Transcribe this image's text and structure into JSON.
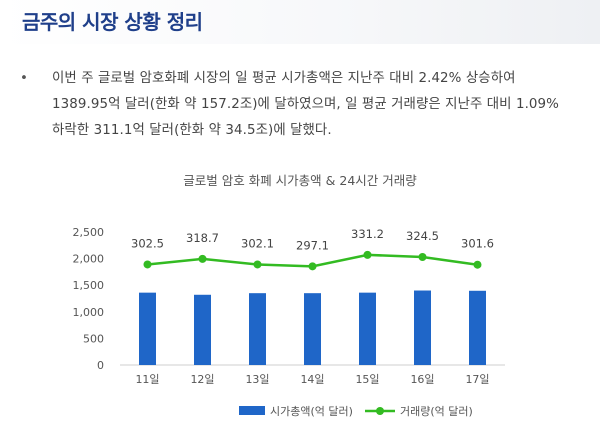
{
  "header": {
    "title": "금주의 시장 상황 정리"
  },
  "summary": {
    "bullet": "•",
    "lines": [
      "이번 주 글로벌 암호화폐 시장의 일 평균 시가총액은 지난주 대비 2.42% 상승하여",
      "1389.95억 달러(한화 약 157.2조)에 달하였으며, 일 평균 거래량은 지난주 대비 1.09%",
      "하락한 311.1억 달러(한화 약 34.5조)에 달했다."
    ]
  },
  "chart_data": {
    "type": "bar",
    "title": "글로벌 암호 화폐 시가총액 & 24시간 거래량",
    "categories": [
      "11일",
      "12일",
      "13일",
      "14일",
      "15일",
      "16일",
      "17일"
    ],
    "ylim": [
      0,
      2500
    ],
    "yticks": [
      "0",
      "500",
      "1,000",
      "1,500",
      "2,000",
      "2,500"
    ],
    "ytick_values": [
      0,
      500,
      1000,
      1500,
      2000,
      2500
    ],
    "grid": false,
    "legend_position": "bottom",
    "series": [
      {
        "name": "시가총액(억 달러)",
        "type": "bar",
        "color": "#1f66c8",
        "values": [
          1360,
          1320,
          1350,
          1350,
          1360,
          1400,
          1395
        ]
      },
      {
        "name": "거래량(억 달러)",
        "type": "line",
        "color": "#33bb22",
        "values": [
          302.5,
          318.7,
          302.1,
          297.1,
          331.2,
          324.5,
          301.6
        ],
        "labels": [
          "302.5",
          "318.7",
          "302.1",
          "297.1",
          "331.2",
          "324.5",
          "301.6"
        ],
        "plot_values": [
          1890,
          1995,
          1890,
          1855,
          2070,
          2030,
          1885
        ]
      }
    ]
  }
}
